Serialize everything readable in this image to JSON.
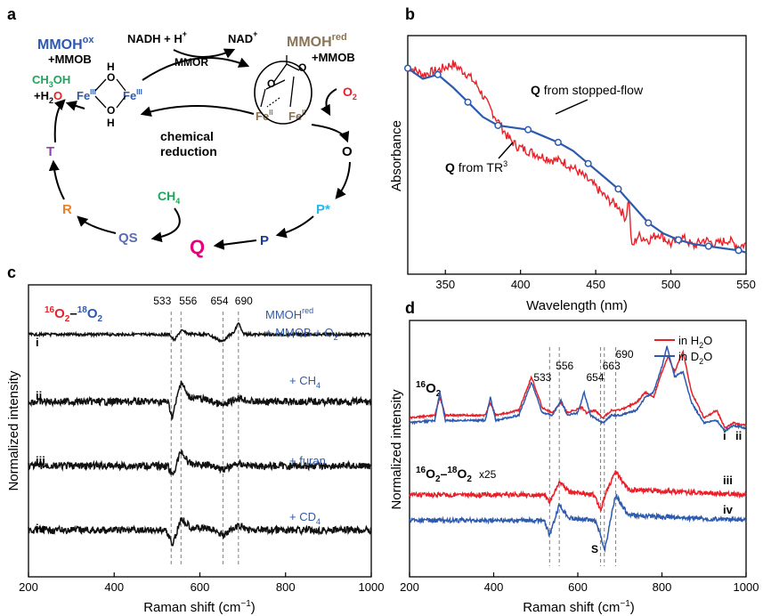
{
  "colors": {
    "red": "#E8202A",
    "blue": "#2E5AAE",
    "navy": "#1F3A93",
    "green": "#1EA65A",
    "tan": "#8A7456",
    "sky": "#29B6E8",
    "orange": "#F07F22",
    "purple": "#8B45A8",
    "magenta": "#E4007F",
    "slate": "#5B6DB3"
  },
  "panel_labels": [
    "a",
    "b",
    "c",
    "d"
  ],
  "diagram": {
    "mmoh_ox": "MMOH",
    "mmoh_ox_sup": "ox",
    "plus_mmob": "+MMOB",
    "mmoh_red": "MMOH",
    "mmoh_red_sup": "red",
    "nadh": "NADH + H",
    "nadh_sup": "+",
    "nad": "NAD",
    "nad_sup": "+",
    "mmor": "MMOR",
    "chem1": "chemical",
    "chem2": "reduction",
    "fe3": "Fe",
    "fe3_sup": "III",
    "fe2": "Fe",
    "fe2_sup": "II",
    "o_atom": "O",
    "h_atom": "H",
    "ch3oh": "CH",
    "ch3oh_sub": "3",
    "ch3oh_end": "OH",
    "h2o_pre": "+H",
    "h2o_sub": "2",
    "h2o_end": "O",
    "o2": "O",
    "o2_sub": "2",
    "ch4": "CH",
    "ch4_sub": "4",
    "states": {
      "O": "O",
      "Pstar": "P*",
      "P": "P",
      "Q": "Q",
      "QS": "QS",
      "R": "R",
      "T": "T"
    }
  },
  "chart_data": [
    {
      "type": "line",
      "panel": "b",
      "xlabel": "Wavelength (nm)",
      "ylabel": "Absorbance",
      "xlim": [
        325,
        550
      ],
      "xticks": [
        350,
        400,
        450,
        500,
        550
      ],
      "series": [
        {
          "name": "Q from stopped-flow",
          "name_bold": "Q",
          "name_rest": " from stopped-flow",
          "color": "#2E5AAE",
          "markers": true,
          "x": [
            325,
            335,
            345,
            355,
            365,
            375,
            385,
            395,
            405,
            415,
            425,
            435,
            445,
            455,
            465,
            475,
            485,
            495,
            505,
            515,
            525,
            535,
            545,
            550
          ],
          "y": [
            0.93,
            0.88,
            0.9,
            0.84,
            0.77,
            0.7,
            0.66,
            0.65,
            0.64,
            0.61,
            0.58,
            0.54,
            0.48,
            0.42,
            0.36,
            0.28,
            0.2,
            0.15,
            0.12,
            0.1,
            0.09,
            0.08,
            0.07,
            0.06
          ]
        },
        {
          "name": "Q from TR3",
          "name_bold": "Q",
          "name_rest": " from TR",
          "name_sup": "3",
          "color": "#E8202A",
          "markers": false,
          "x": [
            325,
            335,
            345,
            355,
            365,
            372,
            378,
            385,
            392,
            398,
            405,
            412,
            420,
            428,
            435,
            442,
            450,
            458,
            465,
            470,
            472,
            474,
            478,
            485,
            492,
            500,
            508,
            515,
            522,
            530,
            538,
            545,
            550
          ],
          "y": [
            0.94,
            0.9,
            0.92,
            0.95,
            0.9,
            0.84,
            0.76,
            0.68,
            0.6,
            0.56,
            0.54,
            0.52,
            0.5,
            0.49,
            0.46,
            0.42,
            0.37,
            0.31,
            0.28,
            0.22,
            0.32,
            0.08,
            0.14,
            0.12,
            0.15,
            0.1,
            0.13,
            0.09,
            0.12,
            0.1,
            0.12,
            0.09,
            0.1
          ]
        }
      ]
    },
    {
      "type": "line",
      "panel": "c",
      "title_a": "16",
      "title_b": "O",
      "title_c": "2",
      "title_d": "–",
      "title_e": "18",
      "title_f": "O",
      "title_g": "2",
      "xlabel": "Raman shift  (cm",
      "xlabel_sup": "−1",
      "xlabel_end": ")",
      "ylabel": "Normalized intensity",
      "xlim": [
        200,
        1000
      ],
      "xticks": [
        200,
        400,
        600,
        800,
        1000
      ],
      "marker_lines": [
        533,
        556,
        654,
        690
      ],
      "series": [
        {
          "name": "i",
          "label": "MMOH",
          "label_sup": "red",
          "label2": "+ MMOB + O",
          "label2_sub": "2",
          "offset": 0.83,
          "amp": 0.035,
          "x": [
            200,
            530,
            540,
            556,
            575,
            620,
            652,
            665,
            680,
            690,
            700,
            720,
            1000
          ],
          "y": [
            0,
            0,
            -0.6,
            0.4,
            0.05,
            0,
            -0.7,
            -0.2,
            0.2,
            1.2,
            0.1,
            0,
            0
          ]
        },
        {
          "name": "ii",
          "label": "+ CH",
          "label_sub": "4",
          "offset": 0.6,
          "amp": 0.045,
          "x": [
            200,
            525,
            536,
            556,
            572,
            620,
            654,
            690,
            720,
            1000
          ],
          "y": [
            0,
            0,
            -1.2,
            1.6,
            0.4,
            0.1,
            -0.3,
            0.3,
            0,
            0
          ]
        },
        {
          "name": "iii",
          "label": "+ furan",
          "offset": 0.38,
          "amp": 0.04,
          "x": [
            200,
            525,
            536,
            556,
            575,
            630,
            654,
            690,
            720,
            1000
          ],
          "y": [
            0,
            0,
            -0.9,
            1.3,
            0.2,
            0.05,
            -0.3,
            0.2,
            0,
            0
          ]
        },
        {
          "name": "iv",
          "label": "+ CD",
          "label_sub": "4",
          "offset": 0.16,
          "amp": 0.04,
          "x": [
            200,
            522,
            536,
            556,
            580,
            630,
            654,
            690,
            720,
            1000
          ],
          "y": [
            0,
            0,
            -1.3,
            1.0,
            0.25,
            0.05,
            -0.4,
            0.35,
            0,
            0
          ]
        }
      ]
    },
    {
      "type": "line",
      "panel": "d",
      "title_a": "16",
      "title_b": "O",
      "title_c": "2",
      "diff_title_a": "16",
      "diff_title_b": "O",
      "diff_title_c": "2",
      "diff_title_d": "–",
      "diff_title_e": "18",
      "diff_title_f": "O",
      "diff_title_g": "2",
      "diff_scale": "x25",
      "xlabel": "Raman shift  (cm",
      "xlabel_sup": "−1",
      "xlabel_end": ")",
      "ylabel": "Normalized intensity",
      "xlim": [
        200,
        1000
      ],
      "xticks": [
        200,
        400,
        600,
        800,
        1000
      ],
      "marker_lines": [
        533,
        556,
        654,
        663,
        690
      ],
      "annotation": "S",
      "legend": [
        {
          "pre": "in H",
          "sub": "2",
          "end": "O",
          "color": "#E8202A"
        },
        {
          "pre": "in D",
          "sub": "2",
          "end": "O",
          "color": "#2E5AAE"
        }
      ],
      "series": [
        {
          "name": "i",
          "color": "#E8202A",
          "offset": 0.6,
          "x": [
            200,
            260,
            272,
            285,
            380,
            392,
            405,
            460,
            490,
            515,
            540,
            560,
            575,
            610,
            620,
            640,
            660,
            680,
            700,
            740,
            760,
            780,
            800,
            815,
            830,
            850,
            870,
            900,
            930,
            950,
            970,
            1000
          ],
          "y": [
            0.02,
            0.03,
            0.1,
            0.03,
            0.03,
            0.08,
            0.03,
            0.05,
            0.18,
            0.06,
            0.04,
            0.08,
            0.04,
            0.06,
            0.04,
            0.05,
            0.02,
            0.05,
            0.05,
            0.08,
            0.12,
            0.1,
            0.2,
            0.26,
            0.2,
            0.28,
            0.12,
            0.02,
            0.05,
            -0.02,
            0.0,
            -0.01
          ]
        },
        {
          "name": "ii",
          "color": "#2E5AAE",
          "offset": 0.6,
          "x": [
            200,
            260,
            272,
            285,
            380,
            392,
            405,
            460,
            490,
            515,
            540,
            560,
            575,
            600,
            615,
            630,
            660,
            680,
            700,
            740,
            760,
            780,
            800,
            812,
            830,
            850,
            870,
            900,
            930,
            950,
            970,
            1000
          ],
          "y": [
            0.0,
            0.01,
            0.12,
            0.01,
            0.01,
            0.1,
            0.01,
            0.03,
            0.16,
            0.04,
            0.03,
            0.09,
            0.03,
            0.04,
            0.12,
            0.03,
            0.0,
            0.03,
            0.03,
            0.05,
            0.1,
            0.12,
            0.22,
            0.3,
            0.18,
            0.2,
            0.08,
            0.0,
            0.01,
            -0.03,
            -0.01,
            -0.02
          ]
        },
        {
          "name": "iii",
          "color": "#E8202A",
          "offset": 0.32,
          "x": [
            200,
            520,
            533,
            556,
            580,
            640,
            654,
            665,
            690,
            720,
            1000
          ],
          "y": [
            0.0,
            0.0,
            -0.03,
            0.05,
            0.01,
            0.0,
            -0.06,
            0.0,
            0.09,
            0.02,
            0.0
          ]
        },
        {
          "name": "iv",
          "color": "#2E5AAE",
          "offset": 0.22,
          "x": [
            200,
            520,
            533,
            556,
            580,
            640,
            654,
            663,
            690,
            720,
            1000
          ],
          "y": [
            0.0,
            0.0,
            -0.06,
            0.06,
            0.01,
            0.0,
            -0.05,
            -0.12,
            0.1,
            0.02,
            0.0
          ]
        }
      ]
    }
  ]
}
